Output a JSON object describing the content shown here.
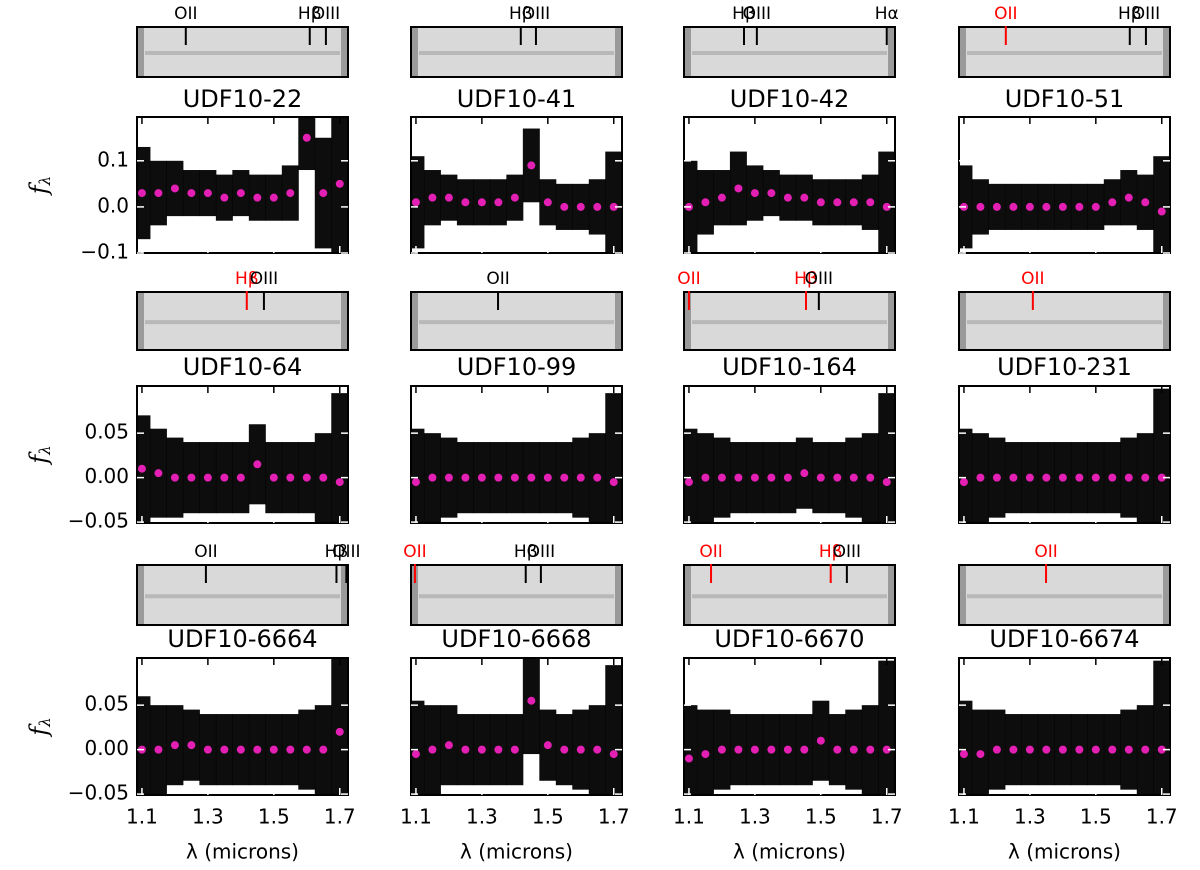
{
  "chart_data": [
    {
      "type": "scatter",
      "title": "UDF10-22",
      "ylabel": "fλ",
      "lines": [
        {
          "label": "OII",
          "x": 1.233,
          "color": "#000000"
        },
        {
          "label": "Hβ",
          "x": 1.609,
          "color": "#000000"
        },
        {
          "label": "OIII",
          "x": 1.658,
          "color": "#000000"
        }
      ],
      "x": [
        1.1,
        1.15,
        1.2,
        1.25,
        1.3,
        1.35,
        1.4,
        1.45,
        1.5,
        1.55,
        1.6,
        1.65,
        1.7
      ],
      "series": [
        {
          "color": "#e31fb4",
          "error_color": "#000000",
          "values": [
            0.03,
            0.03,
            0.04,
            0.03,
            0.03,
            0.02,
            0.03,
            0.02,
            0.02,
            0.03,
            0.15,
            0.03,
            0.05
          ],
          "errors": [
            0.1,
            0.07,
            0.06,
            0.05,
            0.05,
            0.05,
            0.05,
            0.05,
            0.05,
            0.06,
            0.07,
            0.12,
            0.15
          ]
        }
      ],
      "xlim": [
        1.085,
        1.725
      ],
      "ylim": [
        -0.1,
        0.195
      ],
      "xticks": [
        1.1,
        1.3,
        1.5,
        1.7
      ],
      "yticks": [
        {
          "value": -0.1,
          "label": "−0.1"
        },
        {
          "value": 0,
          "label": "0.0"
        },
        0.1
      ]
    },
    {
      "type": "scatter",
      "title": "UDF10-41",
      "lines": [
        {
          "label": "Hβ",
          "x": 1.418,
          "color": "#000000"
        },
        {
          "label": "OIII",
          "x": 1.464,
          "color": "#000000"
        }
      ],
      "x": [
        1.1,
        1.15,
        1.2,
        1.25,
        1.3,
        1.35,
        1.4,
        1.45,
        1.5,
        1.55,
        1.6,
        1.65,
        1.7
      ],
      "series": [
        {
          "color": "#e31fb4",
          "error_color": "#000000",
          "values": [
            0.01,
            0.02,
            0.02,
            0.01,
            0.01,
            0.01,
            0.02,
            0.09,
            0.01,
            0.0,
            0.0,
            0.0,
            0.0
          ],
          "errors": [
            0.1,
            0.06,
            0.05,
            0.05,
            0.05,
            0.05,
            0.05,
            0.08,
            0.05,
            0.05,
            0.05,
            0.06,
            0.12
          ]
        }
      ],
      "xlim": [
        1.085,
        1.725
      ],
      "ylim": [
        -0.1,
        0.195
      ],
      "xticks": [
        1.1,
        1.3,
        1.5,
        1.7
      ],
      "yticks": [
        -0.1,
        0,
        0.1
      ]
    },
    {
      "type": "scatter",
      "title": "UDF10-42",
      "lines": [
        {
          "label": "Hβ",
          "x": 1.267,
          "color": "#000000"
        },
        {
          "label": "OIII",
          "x": 1.306,
          "color": "#000000"
        },
        {
          "label": "Hα",
          "x": 1.7,
          "color": "#000000"
        }
      ],
      "x": [
        1.1,
        1.15,
        1.2,
        1.25,
        1.3,
        1.35,
        1.4,
        1.45,
        1.5,
        1.55,
        1.6,
        1.65,
        1.7
      ],
      "series": [
        {
          "color": "#e31fb4",
          "error_color": "#000000",
          "values": [
            0.0,
            0.01,
            0.02,
            0.04,
            0.03,
            0.03,
            0.02,
            0.02,
            0.01,
            0.01,
            0.01,
            0.01,
            0.0
          ],
          "errors": [
            0.1,
            0.07,
            0.06,
            0.08,
            0.06,
            0.05,
            0.05,
            0.05,
            0.05,
            0.05,
            0.05,
            0.06,
            0.12
          ]
        }
      ],
      "xlim": [
        1.085,
        1.725
      ],
      "ylim": [
        -0.1,
        0.195
      ],
      "xticks": [
        1.1,
        1.3,
        1.5,
        1.7
      ],
      "yticks": [
        -0.1,
        0,
        0.1
      ]
    },
    {
      "type": "scatter",
      "title": "UDF10-51",
      "lines": [
        {
          "label": "OII",
          "x": 1.227,
          "color": "#ff0000"
        },
        {
          "label": "Hβ",
          "x": 1.603,
          "color": "#000000"
        },
        {
          "label": "OIII",
          "x": 1.652,
          "color": "#000000"
        }
      ],
      "x": [
        1.1,
        1.15,
        1.2,
        1.25,
        1.3,
        1.35,
        1.4,
        1.45,
        1.5,
        1.55,
        1.6,
        1.65,
        1.7
      ],
      "series": [
        {
          "color": "#e31fb4",
          "error_color": "#000000",
          "values": [
            0.0,
            0.0,
            0.0,
            0.0,
            0.0,
            0.0,
            0.0,
            0.0,
            0.0,
            0.01,
            0.02,
            0.01,
            -0.01
          ],
          "errors": [
            0.09,
            0.06,
            0.05,
            0.05,
            0.05,
            0.05,
            0.05,
            0.05,
            0.05,
            0.05,
            0.06,
            0.06,
            0.12
          ]
        }
      ],
      "xlim": [
        1.085,
        1.725
      ],
      "ylim": [
        -0.1,
        0.195
      ],
      "xticks": [
        1.1,
        1.3,
        1.5,
        1.7
      ],
      "yticks": [
        -0.1,
        0,
        0.1
      ]
    },
    {
      "type": "scatter",
      "title": "UDF10-64",
      "ylabel": "fλ",
      "lines": [
        {
          "label": "Hβ",
          "x": 1.418,
          "color": "#ff0000"
        },
        {
          "label": "OIII",
          "x": 1.47,
          "color": "#000000"
        }
      ],
      "x": [
        1.1,
        1.15,
        1.2,
        1.25,
        1.3,
        1.35,
        1.4,
        1.45,
        1.5,
        1.55,
        1.6,
        1.65,
        1.7
      ],
      "series": [
        {
          "color": "#e31fb4",
          "error_color": "#000000",
          "values": [
            0.01,
            0.005,
            0.0,
            0.0,
            0.0,
            0.0,
            0.0,
            0.015,
            0.0,
            0.0,
            0.0,
            0.0,
            -0.005
          ],
          "errors": [
            0.06,
            0.05,
            0.045,
            0.04,
            0.04,
            0.04,
            0.04,
            0.045,
            0.04,
            0.04,
            0.04,
            0.05,
            0.1
          ]
        }
      ],
      "xlim": [
        1.085,
        1.725
      ],
      "ylim": [
        -0.051,
        0.103
      ],
      "xticks": [
        1.1,
        1.3,
        1.5,
        1.7
      ],
      "yticks": [
        {
          "value": -0.05,
          "label": "−0.05"
        },
        {
          "value": 0,
          "label": "0.00"
        },
        0.05
      ]
    },
    {
      "type": "scatter",
      "title": "UDF10-99",
      "lines": [
        {
          "label": "OII",
          "x": 1.349,
          "color": "#000000"
        }
      ],
      "x": [
        1.1,
        1.15,
        1.2,
        1.25,
        1.3,
        1.35,
        1.4,
        1.45,
        1.5,
        1.55,
        1.6,
        1.65,
        1.7
      ],
      "series": [
        {
          "color": "#e31fb4",
          "error_color": "#000000",
          "values": [
            -0.005,
            0,
            0,
            0,
            0,
            0,
            0,
            0,
            0,
            0,
            0,
            0,
            -0.005
          ],
          "errors": [
            0.06,
            0.05,
            0.045,
            0.04,
            0.04,
            0.04,
            0.04,
            0.04,
            0.04,
            0.04,
            0.045,
            0.05,
            0.1
          ]
        }
      ],
      "xlim": [
        1.085,
        1.725
      ],
      "ylim": [
        -0.051,
        0.103
      ],
      "xticks": [
        1.1,
        1.3,
        1.5,
        1.7
      ],
      "yticks": [
        -0.05,
        0,
        0.05
      ]
    },
    {
      "type": "scatter",
      "title": "UDF10-164",
      "lines": [
        {
          "label": "OII",
          "x": 1.1,
          "color": "#ff0000"
        },
        {
          "label": "Hβ",
          "x": 1.455,
          "color": "#ff0000"
        },
        {
          "label": "OIII",
          "x": 1.494,
          "color": "#000000"
        }
      ],
      "x": [
        1.1,
        1.15,
        1.2,
        1.25,
        1.3,
        1.35,
        1.4,
        1.45,
        1.5,
        1.55,
        1.6,
        1.65,
        1.7
      ],
      "series": [
        {
          "color": "#e31fb4",
          "error_color": "#000000",
          "values": [
            -0.005,
            0,
            0,
            0,
            0,
            0,
            0,
            0.005,
            0,
            0,
            0,
            0,
            -0.005
          ],
          "errors": [
            0.06,
            0.05,
            0.045,
            0.04,
            0.04,
            0.04,
            0.04,
            0.04,
            0.04,
            0.04,
            0.045,
            0.05,
            0.1
          ]
        }
      ],
      "xlim": [
        1.085,
        1.725
      ],
      "ylim": [
        -0.051,
        0.103
      ],
      "xticks": [
        1.1,
        1.3,
        1.5,
        1.7
      ],
      "yticks": [
        -0.05,
        0,
        0.05
      ]
    },
    {
      "type": "scatter",
      "title": "UDF10-231",
      "lines": [
        {
          "label": "OII",
          "x": 1.309,
          "color": "#ff0000"
        }
      ],
      "x": [
        1.1,
        1.15,
        1.2,
        1.25,
        1.3,
        1.35,
        1.4,
        1.45,
        1.5,
        1.55,
        1.6,
        1.65,
        1.7
      ],
      "series": [
        {
          "color": "#e31fb4",
          "error_color": "#000000",
          "values": [
            -0.005,
            0,
            0,
            0,
            0,
            0,
            0,
            0,
            0,
            0,
            0,
            0,
            0
          ],
          "errors": [
            0.06,
            0.05,
            0.045,
            0.04,
            0.04,
            0.04,
            0.04,
            0.04,
            0.04,
            0.04,
            0.045,
            0.05,
            0.1
          ]
        }
      ],
      "xlim": [
        1.085,
        1.725
      ],
      "ylim": [
        -0.051,
        0.103
      ],
      "xticks": [
        1.1,
        1.3,
        1.5,
        1.7
      ],
      "yticks": [
        -0.05,
        0,
        0.05
      ]
    },
    {
      "type": "scatter",
      "title": "UDF10-6664",
      "ylabel": "fλ",
      "xlabel": "λ (microns)",
      "lines": [
        {
          "label": "OII",
          "x": 1.294,
          "color": "#000000"
        },
        {
          "label": "Hβ",
          "x": 1.69,
          "color": "#000000"
        },
        {
          "label": "OIII",
          "x": 1.72,
          "color": "#000000"
        }
      ],
      "x": [
        1.1,
        1.15,
        1.2,
        1.25,
        1.3,
        1.35,
        1.4,
        1.45,
        1.5,
        1.55,
        1.6,
        1.65,
        1.7
      ],
      "series": [
        {
          "color": "#e31fb4",
          "error_color": "#000000",
          "values": [
            0.0,
            0.0,
            0.005,
            0.005,
            0.0,
            0.0,
            0.0,
            0.0,
            0.0,
            0.0,
            0.0,
            0.0,
            0.02
          ],
          "errors": [
            0.06,
            0.05,
            0.045,
            0.04,
            0.04,
            0.04,
            0.04,
            0.04,
            0.04,
            0.04,
            0.045,
            0.05,
            0.1
          ]
        }
      ],
      "xlim": [
        1.085,
        1.725
      ],
      "ylim": [
        -0.051,
        0.103
      ],
      "xticks": [
        1.1,
        1.3,
        1.5,
        1.7
      ],
      "yticks": [
        {
          "value": -0.05,
          "label": "−0.05"
        },
        {
          "value": 0,
          "label": "0.00"
        },
        0.05
      ]
    },
    {
      "type": "scatter",
      "title": "UDF10-6668",
      "xlabel": "λ (microns)",
      "lines": [
        {
          "label": "OII",
          "x": 1.097,
          "color": "#ff0000"
        },
        {
          "label": "Hβ",
          "x": 1.433,
          "color": "#000000"
        },
        {
          "label": "OIII",
          "x": 1.479,
          "color": "#000000"
        }
      ],
      "x": [
        1.1,
        1.15,
        1.2,
        1.25,
        1.3,
        1.35,
        1.4,
        1.45,
        1.5,
        1.55,
        1.6,
        1.65,
        1.7
      ],
      "series": [
        {
          "color": "#e31fb4",
          "error_color": "#000000",
          "values": [
            -0.005,
            0.0,
            0.005,
            0.0,
            0.0,
            0.0,
            0.0,
            0.055,
            0.005,
            0.0,
            0.0,
            0.0,
            -0.005
          ],
          "errors": [
            0.06,
            0.05,
            0.045,
            0.04,
            0.04,
            0.04,
            0.04,
            0.06,
            0.04,
            0.04,
            0.045,
            0.05,
            0.1
          ]
        }
      ],
      "xlim": [
        1.085,
        1.725
      ],
      "ylim": [
        -0.051,
        0.103
      ],
      "xticks": [
        1.1,
        1.3,
        1.5,
        1.7
      ],
      "yticks": [
        -0.05,
        0,
        0.05
      ]
    },
    {
      "type": "scatter",
      "title": "UDF10-6670",
      "xlabel": "λ (microns)",
      "lines": [
        {
          "label": "OII",
          "x": 1.167,
          "color": "#ff0000"
        },
        {
          "label": "Hβ",
          "x": 1.53,
          "color": "#ff0000"
        },
        {
          "label": "OIII",
          "x": 1.579,
          "color": "#000000"
        }
      ],
      "x": [
        1.1,
        1.15,
        1.2,
        1.25,
        1.3,
        1.35,
        1.4,
        1.45,
        1.5,
        1.55,
        1.6,
        1.65,
        1.7
      ],
      "series": [
        {
          "color": "#e31fb4",
          "error_color": "#000000",
          "values": [
            -0.01,
            -0.005,
            0,
            0,
            0,
            0,
            0,
            0,
            0.01,
            0,
            0,
            0,
            0
          ],
          "errors": [
            0.06,
            0.05,
            0.045,
            0.04,
            0.04,
            0.04,
            0.04,
            0.04,
            0.045,
            0.04,
            0.045,
            0.05,
            0.1
          ]
        }
      ],
      "xlim": [
        1.085,
        1.725
      ],
      "ylim": [
        -0.051,
        0.103
      ],
      "xticks": [
        1.1,
        1.3,
        1.5,
        1.7
      ],
      "yticks": [
        -0.05,
        0,
        0.05
      ]
    },
    {
      "type": "scatter",
      "title": "UDF10-6674",
      "xlabel": "λ (microns)",
      "lines": [
        {
          "label": "OII",
          "x": 1.349,
          "color": "#ff0000"
        }
      ],
      "x": [
        1.1,
        1.15,
        1.2,
        1.25,
        1.3,
        1.35,
        1.4,
        1.45,
        1.5,
        1.55,
        1.6,
        1.65,
        1.7
      ],
      "series": [
        {
          "color": "#e31fb4",
          "error_color": "#000000",
          "values": [
            -0.005,
            -0.005,
            0,
            0,
            0,
            0,
            0,
            0,
            0,
            0,
            0,
            0,
            0
          ],
          "errors": [
            0.06,
            0.05,
            0.045,
            0.04,
            0.04,
            0.04,
            0.04,
            0.04,
            0.04,
            0.04,
            0.045,
            0.05,
            0.1
          ]
        }
      ],
      "xlim": [
        1.085,
        1.725
      ],
      "ylim": [
        -0.051,
        0.103
      ],
      "xticks": [
        1.1,
        1.3,
        1.5,
        1.7
      ],
      "yticks": [
        -0.05,
        0,
        0.05
      ]
    }
  ]
}
